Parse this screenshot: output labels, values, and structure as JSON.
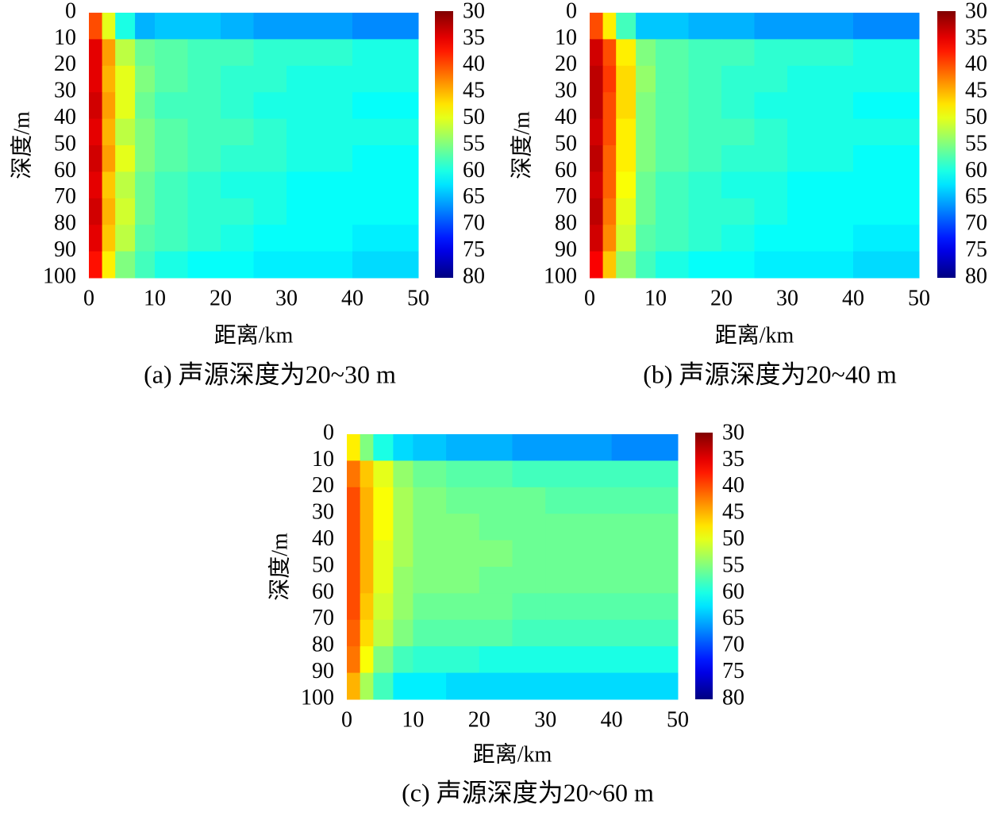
{
  "chart_data": [
    {
      "type": "heatmap",
      "caption": "(a) 声源深度为20~30 m",
      "xlabel": "距离/km",
      "ylabel": "深度/m",
      "colormap": "jet",
      "xbins": [
        0,
        2,
        4,
        7,
        10,
        15,
        20,
        25,
        30,
        40,
        50
      ],
      "ybins": [
        0,
        10,
        20,
        30,
        40,
        50,
        60,
        70,
        80,
        90,
        100
      ],
      "z": [
        [
          40,
          50,
          60,
          65,
          64,
          64,
          65,
          66,
          66,
          67
        ],
        [
          35,
          44,
          52,
          56,
          57,
          58,
          58,
          59,
          59,
          60
        ],
        [
          35,
          45,
          50,
          55,
          57,
          58,
          59,
          59,
          60,
          60
        ],
        [
          34,
          44,
          50,
          56,
          58,
          58,
          59,
          60,
          60,
          61
        ],
        [
          35,
          45,
          52,
          55,
          57,
          58,
          58,
          59,
          60,
          60
        ],
        [
          34,
          44,
          50,
          55,
          57,
          58,
          59,
          59,
          60,
          61
        ],
        [
          35,
          46,
          52,
          56,
          58,
          59,
          60,
          60,
          61,
          61
        ],
        [
          34,
          45,
          51,
          56,
          58,
          59,
          59,
          60,
          61,
          61
        ],
        [
          35,
          46,
          52,
          57,
          58,
          59,
          60,
          61,
          61,
          62
        ],
        [
          37,
          48,
          55,
          58,
          60,
          61,
          61,
          62,
          62,
          63
        ]
      ],
      "xlim": [
        0,
        50
      ],
      "xticks": [
        0,
        10,
        20,
        30,
        40,
        50
      ],
      "ylim": [
        0,
        100
      ],
      "yticks": [
        0,
        10,
        20,
        30,
        40,
        50,
        60,
        70,
        80,
        90,
        100
      ],
      "y_reversed": true,
      "clim": [
        30,
        80
      ],
      "cticks": [
        30,
        35,
        40,
        45,
        50,
        55,
        60,
        65,
        70,
        75,
        80
      ],
      "colorbar_reversed": true
    },
    {
      "type": "heatmap",
      "caption": "(b) 声源深度为20~40 m",
      "xlabel": "距离/km",
      "ylabel": "深度/m",
      "colormap": "jet",
      "xbins": [
        0,
        2,
        4,
        7,
        10,
        15,
        20,
        25,
        30,
        40,
        50
      ],
      "ybins": [
        0,
        10,
        20,
        30,
        40,
        50,
        60,
        70,
        80,
        90,
        100
      ],
      "z": [
        [
          40,
          48,
          58,
          64,
          64,
          65,
          65,
          66,
          66,
          67
        ],
        [
          34,
          40,
          48,
          55,
          57,
          58,
          58,
          59,
          59,
          60
        ],
        [
          33,
          39,
          47,
          54,
          57,
          58,
          59,
          59,
          60,
          60
        ],
        [
          33,
          40,
          47,
          55,
          57,
          58,
          59,
          60,
          60,
          61
        ],
        [
          34,
          40,
          48,
          55,
          57,
          58,
          58,
          59,
          60,
          60
        ],
        [
          33,
          41,
          48,
          55,
          57,
          58,
          59,
          59,
          60,
          61
        ],
        [
          34,
          41,
          49,
          56,
          58,
          59,
          60,
          60,
          61,
          61
        ],
        [
          33,
          42,
          50,
          56,
          58,
          59,
          59,
          60,
          61,
          61
        ],
        [
          34,
          43,
          51,
          57,
          58,
          59,
          60,
          61,
          61,
          62
        ],
        [
          36,
          46,
          54,
          58,
          60,
          61,
          61,
          62,
          62,
          63
        ]
      ],
      "xlim": [
        0,
        50
      ],
      "xticks": [
        0,
        10,
        20,
        30,
        40,
        50
      ],
      "ylim": [
        0,
        100
      ],
      "yticks": [
        0,
        10,
        20,
        30,
        40,
        50,
        60,
        70,
        80,
        90,
        100
      ],
      "y_reversed": true,
      "clim": [
        30,
        80
      ],
      "cticks": [
        30,
        35,
        40,
        45,
        50,
        55,
        60,
        65,
        70,
        75,
        80
      ],
      "colorbar_reversed": true
    },
    {
      "type": "heatmap",
      "caption": "(c) 声源深度为20~60 m",
      "xlabel": "距离/km",
      "ylabel": "深度/m",
      "colormap": "jet",
      "xbins": [
        0,
        2,
        4,
        7,
        10,
        15,
        20,
        25,
        30,
        40,
        50
      ],
      "ybins": [
        0,
        10,
        20,
        30,
        40,
        50,
        60,
        70,
        80,
        90,
        100
      ],
      "z": [
        [
          48,
          55,
          60,
          63,
          64,
          65,
          65,
          66,
          66,
          67
        ],
        [
          42,
          46,
          50,
          54,
          56,
          57,
          57,
          58,
          58,
          58
        ],
        [
          40,
          45,
          49,
          53,
          55,
          56,
          56,
          56,
          57,
          57
        ],
        [
          40,
          45,
          49,
          53,
          55,
          55,
          56,
          56,
          56,
          56
        ],
        [
          40,
          45,
          50,
          53,
          55,
          55,
          55,
          56,
          56,
          56
        ],
        [
          40,
          45,
          50,
          54,
          55,
          55,
          56,
          56,
          56,
          56
        ],
        [
          40,
          46,
          51,
          54,
          56,
          56,
          56,
          57,
          57,
          57
        ],
        [
          41,
          47,
          52,
          55,
          57,
          57,
          57,
          58,
          58,
          58
        ],
        [
          42,
          49,
          55,
          58,
          59,
          59,
          60,
          60,
          60,
          60
        ],
        [
          45,
          53,
          58,
          62,
          62,
          63,
          63,
          63,
          63,
          63
        ]
      ],
      "xlim": [
        0,
        50
      ],
      "xticks": [
        0,
        10,
        20,
        30,
        40,
        50
      ],
      "ylim": [
        0,
        100
      ],
      "yticks": [
        0,
        10,
        20,
        30,
        40,
        50,
        60,
        70,
        80,
        90,
        100
      ],
      "y_reversed": true,
      "clim": [
        30,
        80
      ],
      "cticks": [
        30,
        35,
        40,
        45,
        50,
        55,
        60,
        65,
        70,
        75,
        80
      ],
      "colorbar_reversed": true
    }
  ]
}
